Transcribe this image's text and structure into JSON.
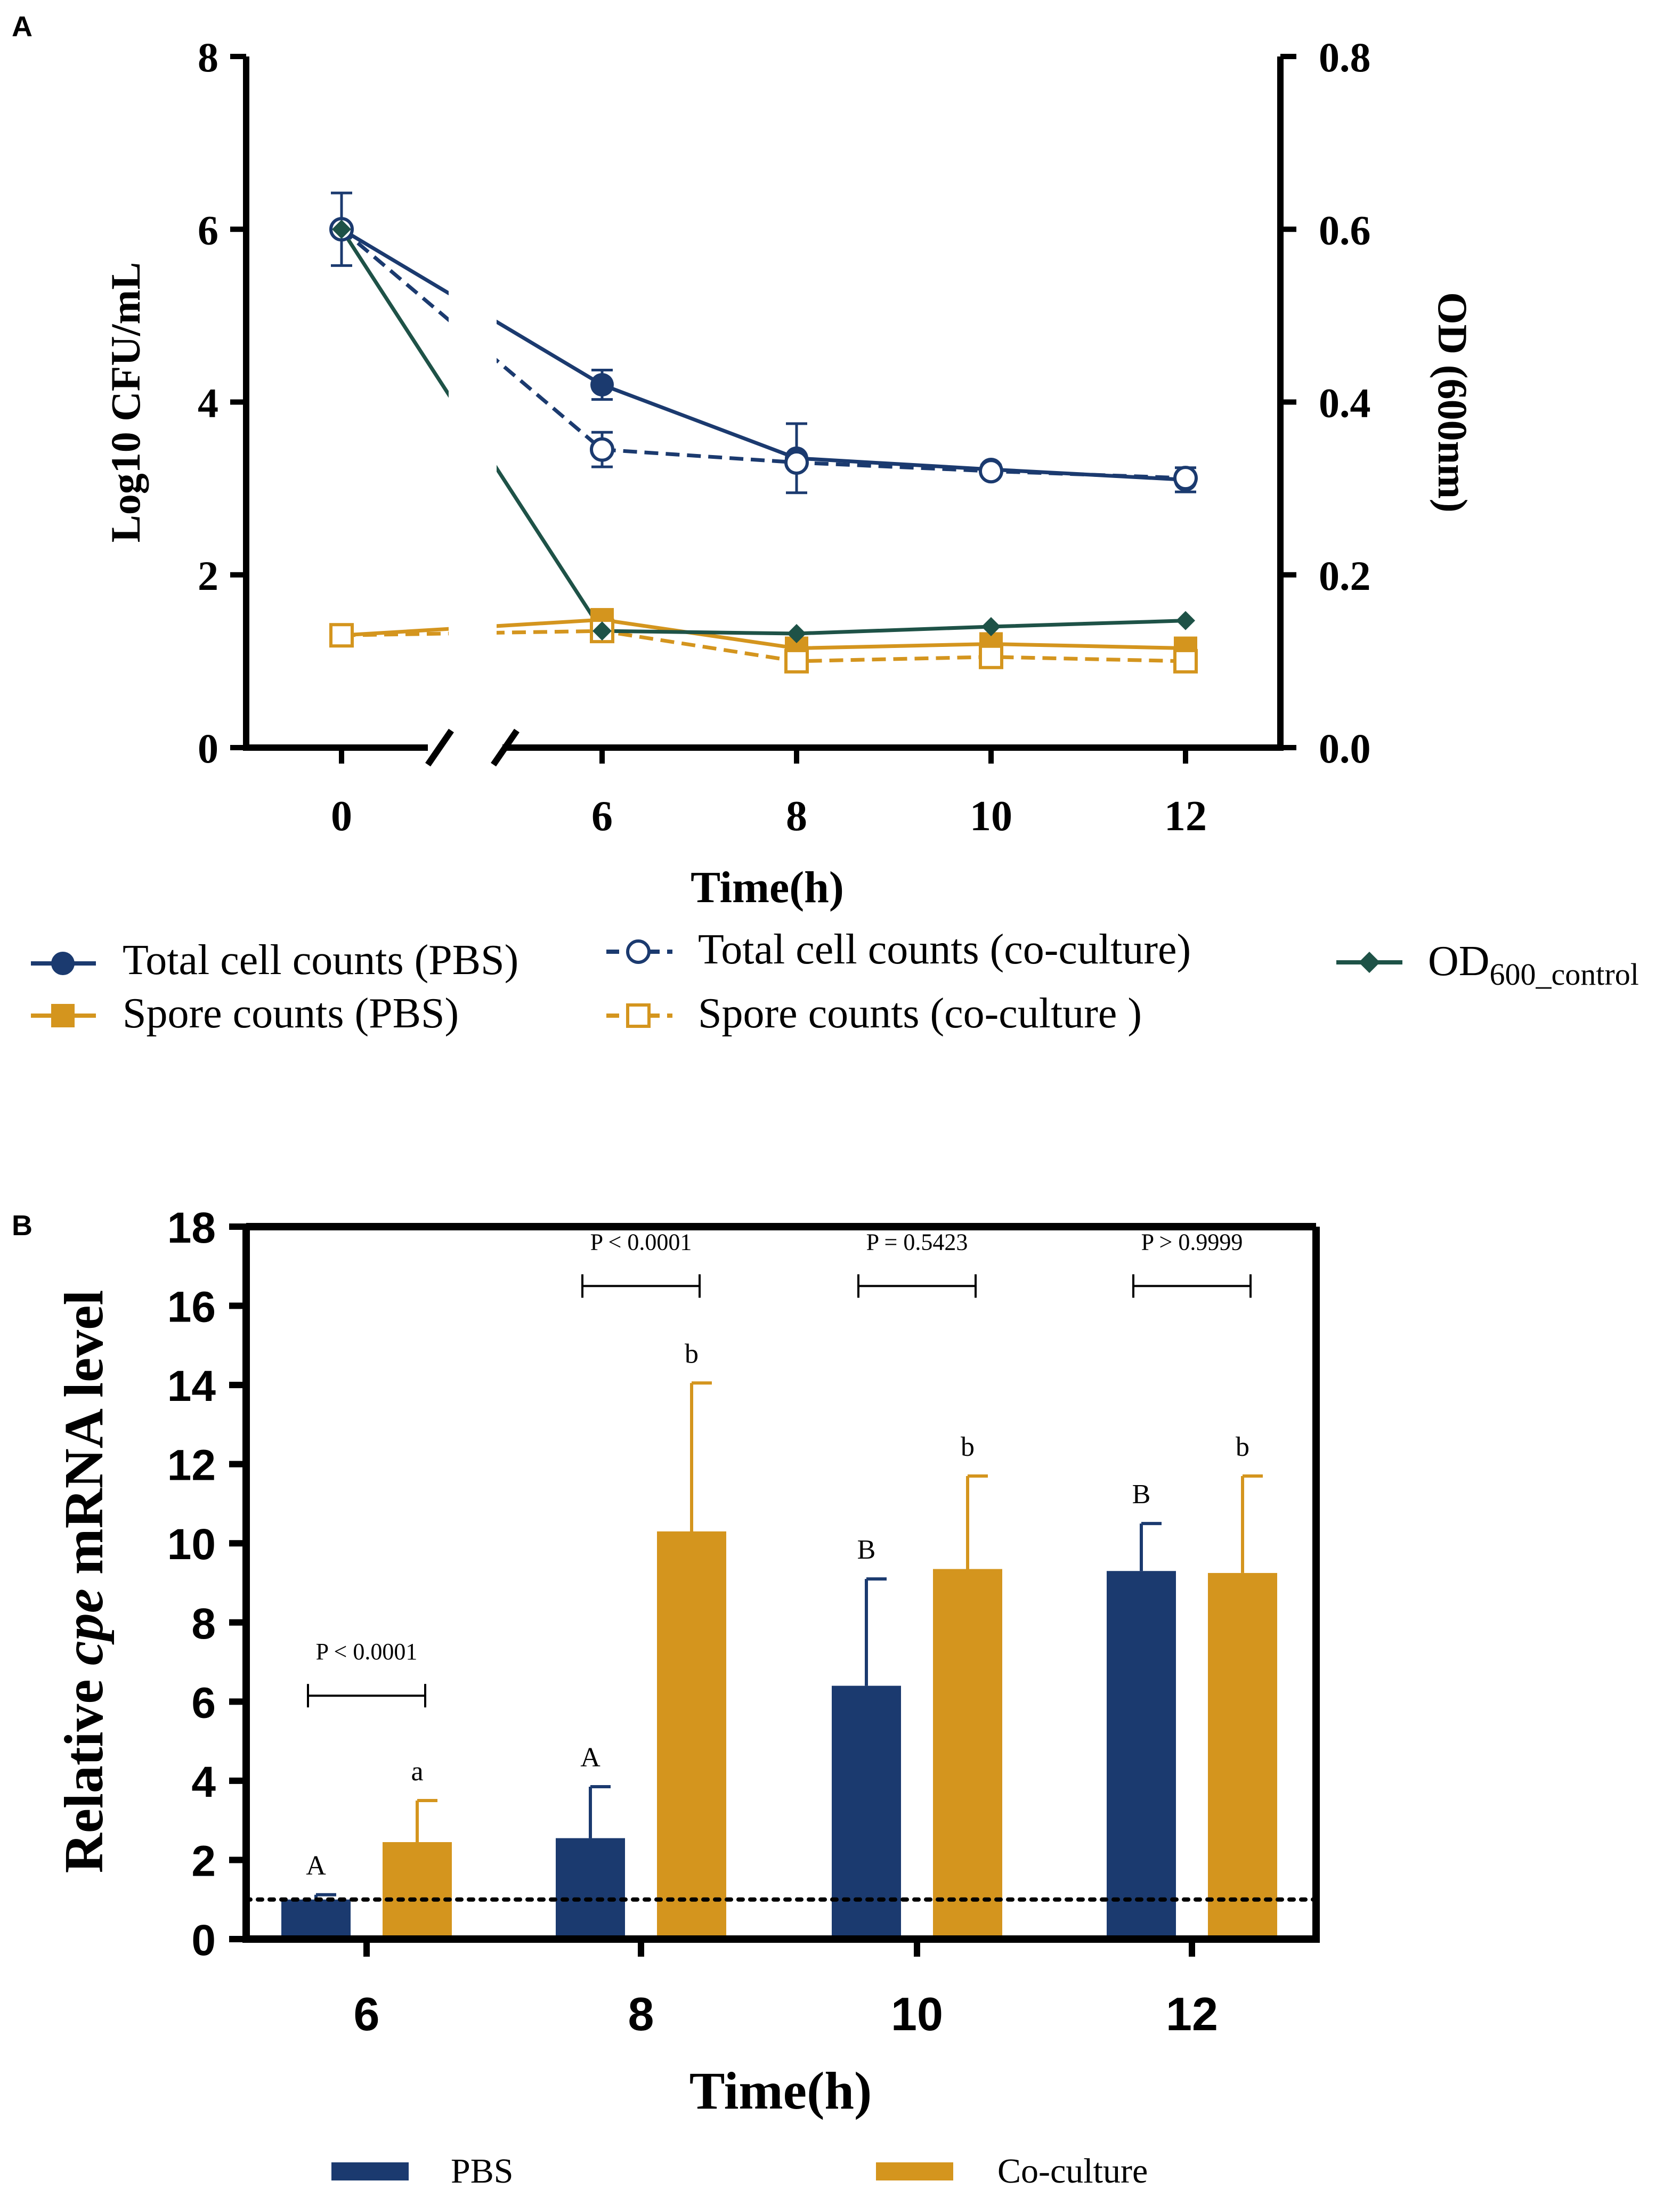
{
  "colors": {
    "pbs": "#1b3a6f",
    "coculture": "#d4951e",
    "od": "#1e5247",
    "axis": "#000000"
  },
  "chart_data": [
    {
      "panel": "A",
      "type": "line",
      "xlabel": "Time(h)",
      "ylabel": "Log10 CFU/mL",
      "y2label": "OD (600nm)",
      "ylim": [
        0,
        8
      ],
      "yticks": [
        "0",
        "2",
        "4",
        "6",
        "8"
      ],
      "y2lim": [
        0.0,
        0.8
      ],
      "y2ticks": [
        "0.0",
        "0.2",
        "0.4",
        "0.6",
        "0.8"
      ],
      "xticks": [
        "0",
        "6",
        "8",
        "10",
        "12"
      ],
      "axis_break": "between 0 and 6",
      "series": [
        {
          "name": "Total cell counts (PBS)",
          "x": [
            0,
            6,
            8,
            10,
            12
          ],
          "values": [
            6.0,
            4.2,
            3.35,
            3.22,
            3.1
          ],
          "err": [
            0.42,
            0.17,
            0.4,
            0.05,
            0.14
          ],
          "marker": "filled-circle",
          "line": "solid",
          "color": "pbs"
        },
        {
          "name": "Total cell counts (co-culture)",
          "x": [
            0,
            6,
            8,
            10,
            12
          ],
          "values": [
            6.0,
            3.45,
            3.3,
            3.2,
            3.12
          ],
          "err": [
            0,
            0.2,
            0,
            0,
            0
          ],
          "marker": "open-circle",
          "line": "dashed",
          "color": "pbs"
        },
        {
          "name": "Spore counts (PBS)",
          "x": [
            0,
            6,
            8,
            10,
            12
          ],
          "values": [
            1.3,
            1.48,
            1.15,
            1.2,
            1.15
          ],
          "err": [
            0,
            0,
            0,
            0,
            0
          ],
          "marker": "filled-square",
          "line": "solid",
          "color": "coculture"
        },
        {
          "name": "Spore counts (co-culture )",
          "x": [
            0,
            6,
            8,
            10,
            12
          ],
          "values": [
            1.3,
            1.35,
            1.0,
            1.05,
            1.0
          ],
          "err": [
            0,
            0,
            0.12,
            0.1,
            0.1
          ],
          "marker": "open-square",
          "line": "dashed",
          "color": "coculture"
        },
        {
          "name": "OD",
          "name_sub": "600_control",
          "axis": "right",
          "x": [
            0,
            6,
            8,
            10,
            12
          ],
          "values": [
            0.6,
            0.135,
            0.132,
            0.14,
            0.147
          ],
          "err": [
            0,
            0,
            0,
            0,
            0
          ],
          "marker": "filled-diamond",
          "line": "solid",
          "color": "od"
        }
      ]
    },
    {
      "panel": "B",
      "type": "bar",
      "xlabel": "Time(h)",
      "ylabel_pre": "Relative ",
      "ylabel_italic": "cpe",
      "ylabel_post": " mRNA level",
      "ylim": [
        0,
        18
      ],
      "yticks": [
        "0",
        "2",
        "4",
        "6",
        "8",
        "10",
        "12",
        "14",
        "16",
        "18"
      ],
      "categories": [
        "6",
        "8",
        "10",
        "12"
      ],
      "reference_line": 1,
      "series": [
        {
          "name": "PBS",
          "color": "pbs",
          "values": [
            1.0,
            2.55,
            6.4,
            9.3
          ],
          "err": [
            0.12,
            1.3,
            2.7,
            1.2
          ],
          "letters": [
            "A",
            "A",
            "B",
            "B"
          ]
        },
        {
          "name": "Co-culture",
          "color": "coculture",
          "values": [
            2.45,
            10.3,
            9.35,
            9.25
          ],
          "err": [
            1.05,
            3.75,
            2.35,
            2.45
          ],
          "letters": [
            "a",
            "b",
            "b",
            "b"
          ]
        }
      ],
      "p_values": [
        "P < 0.0001",
        "P < 0.0001",
        "P = 0.5423",
        "P > 0.9999"
      ]
    }
  ],
  "panelA": {
    "label": "A",
    "ylabel": "Log10 CFU/mL",
    "y2label": "OD (600nm)",
    "xlabel": "Time(h)",
    "legend": {
      "l1": "Total cell counts (PBS)",
      "l2": "Total cell counts (co-culture)",
      "l3": "Spore counts (PBS)",
      "l4": "Spore counts (co-culture )",
      "l5_main": "OD",
      "l5_sub": "600_control"
    }
  },
  "panelB": {
    "label": "B",
    "ylabel_pre": "Relative ",
    "ylabel_italic": "cpe",
    "ylabel_post": " mRNA level",
    "xlabel": "Time(h)",
    "legend": {
      "pbs": "PBS",
      "coculture": "Co-culture"
    }
  }
}
